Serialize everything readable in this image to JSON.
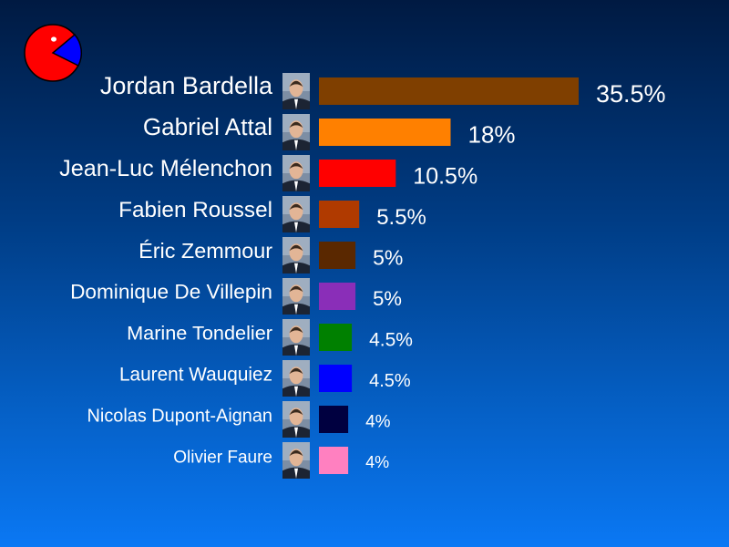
{
  "chart_data": {
    "type": "bar",
    "orientation": "horizontal",
    "categories": [
      "Jordan Bardella",
      "Gabriel Attal",
      "Jean-Luc Mélenchon",
      "Fabien Roussel",
      "Éric Zemmour",
      "Dominique De Villepin",
      "Marine Tondelier",
      "Laurent Wauquiez",
      "Nicolas Dupont-Aignan",
      "Olivier Faure"
    ],
    "values": [
      35.5,
      18,
      10.5,
      5.5,
      5,
      5,
      4.5,
      4.5,
      4,
      4
    ],
    "value_labels": [
      "35.5%",
      "18%",
      "10.5%",
      "5.5%",
      "5%",
      "5%",
      "4.5%",
      "4.5%",
      "4%",
      "4%"
    ],
    "colors": [
      "#7f3f00",
      "#ff8000",
      "#ff0000",
      "#b03a00",
      "#5a2800",
      "#8a2eb8",
      "#008000",
      "#0000ff",
      "#000040",
      "#ff80c0"
    ],
    "icons": [
      "portrait-icon",
      "portrait-icon",
      "portrait-icon",
      "portrait-icon",
      "portrait-icon",
      "portrait-icon",
      "portrait-icon",
      "portrait-icon",
      "portrait-icon",
      "portrait-icon"
    ],
    "title": "",
    "xlabel": "",
    "ylabel": "",
    "xlim": [
      0,
      35.5
    ],
    "grid": false,
    "legend": "none"
  },
  "logo": {
    "icon": "pie-chart-logo-icon",
    "colors": [
      "#ff0000",
      "#0000ff"
    ]
  }
}
